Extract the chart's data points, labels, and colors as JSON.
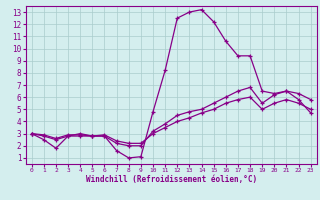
{
  "xlabel": "Windchill (Refroidissement éolien,°C)",
  "xlim": [
    -0.5,
    23.5
  ],
  "ylim": [
    0.5,
    13.5
  ],
  "xticks": [
    0,
    1,
    2,
    3,
    4,
    5,
    6,
    7,
    8,
    9,
    10,
    11,
    12,
    13,
    14,
    15,
    16,
    17,
    18,
    19,
    20,
    21,
    22,
    23
  ],
  "yticks": [
    1,
    2,
    3,
    4,
    5,
    6,
    7,
    8,
    9,
    10,
    11,
    12,
    13
  ],
  "bg_color": "#d4eeee",
  "line_color": "#880088",
  "grid_color": "#aacccc",
  "lines": [
    {
      "x": [
        0,
        1,
        2,
        3,
        4,
        5,
        6,
        7,
        8,
        9,
        10,
        11,
        12,
        13,
        14,
        15,
        16,
        17,
        18,
        19,
        20,
        21,
        22,
        23
      ],
      "y": [
        3.0,
        2.5,
        1.8,
        2.8,
        3.0,
        2.8,
        2.8,
        1.6,
        1.0,
        1.1,
        4.8,
        8.2,
        12.5,
        13.0,
        13.2,
        12.2,
        10.6,
        9.4,
        9.4,
        6.5,
        6.3,
        6.5,
        5.8,
        4.7
      ]
    },
    {
      "x": [
        0,
        1,
        2,
        3,
        4,
        5,
        6,
        7,
        8,
        9,
        10,
        11,
        12,
        13,
        14,
        15,
        16,
        17,
        18,
        19,
        20,
        21,
        22,
        23
      ],
      "y": [
        3.0,
        2.8,
        2.5,
        2.8,
        2.8,
        2.8,
        2.8,
        2.2,
        2.0,
        2.0,
        3.2,
        3.8,
        4.5,
        4.8,
        5.0,
        5.5,
        6.0,
        6.5,
        6.8,
        5.5,
        6.2,
        6.5,
        6.3,
        5.8
      ]
    },
    {
      "x": [
        0,
        1,
        2,
        3,
        4,
        5,
        6,
        7,
        8,
        9,
        10,
        11,
        12,
        13,
        14,
        15,
        16,
        17,
        18,
        19,
        20,
        21,
        22,
        23
      ],
      "y": [
        3.0,
        2.9,
        2.6,
        2.9,
        2.9,
        2.8,
        2.9,
        2.4,
        2.2,
        2.2,
        3.0,
        3.5,
        4.0,
        4.3,
        4.7,
        5.0,
        5.5,
        5.8,
        6.0,
        5.0,
        5.5,
        5.8,
        5.5,
        5.0
      ]
    }
  ]
}
